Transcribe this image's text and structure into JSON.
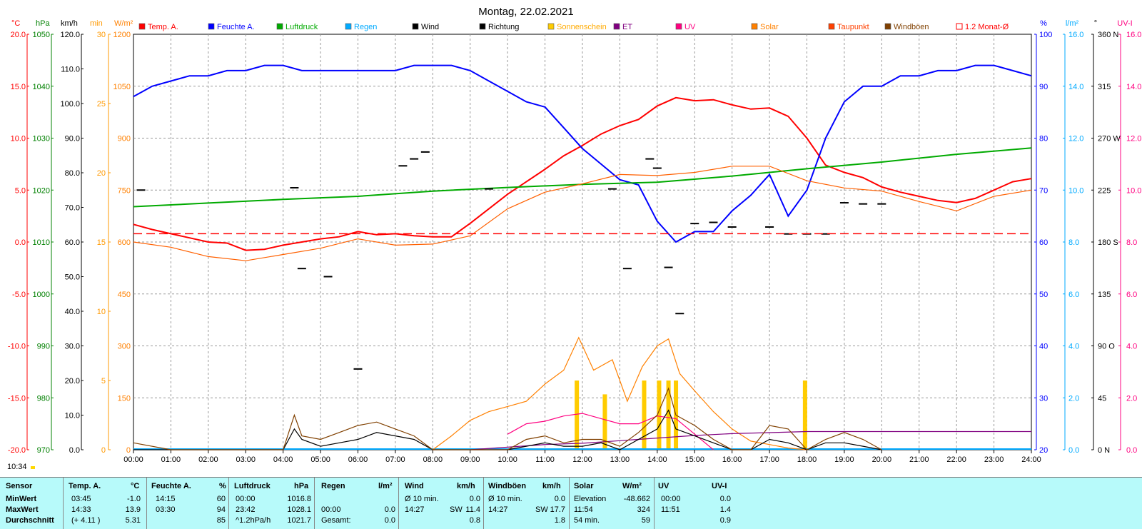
{
  "chart_data": {
    "type": "line",
    "title": "Montag, 22.02.2021",
    "x_ticks": [
      "00:00",
      "01:00",
      "02:00",
      "03:00",
      "04:00",
      "05:00",
      "06:00",
      "07:00",
      "08:00",
      "09:00",
      "10:00",
      "11:00",
      "12:00",
      "13:00",
      "14:00",
      "15:00",
      "16:00",
      "17:00",
      "18:00",
      "19:00",
      "20:00",
      "21:00",
      "22:00",
      "23:00",
      "24:00"
    ],
    "xlim": [
      0,
      24
    ],
    "legend": [
      {
        "label": "Temp. A.",
        "color": "#ff0000",
        "style": "fill"
      },
      {
        "label": "Feuchte A.",
        "color": "#0000ff",
        "style": "fill"
      },
      {
        "label": "Luftdruck",
        "color": "#00aa00",
        "style": "fill"
      },
      {
        "label": "Regen",
        "color": "#00aaff",
        "style": "fill"
      },
      {
        "label": "Wind",
        "color": "#000000",
        "style": "fill"
      },
      {
        "label": "Richtung",
        "color": "#000000",
        "style": "fill"
      },
      {
        "label": "Sonnenschein",
        "color": "#ffcc00",
        "style": "fill"
      },
      {
        "label": "ET",
        "color": "#800080",
        "style": "fill"
      },
      {
        "label": "UV",
        "color": "#ff0080",
        "style": "fill"
      },
      {
        "label": "Solar",
        "color": "#ff8000",
        "style": "fill"
      },
      {
        "label": "Taupunkt",
        "color": "#ff4000",
        "style": "fill"
      },
      {
        "label": "Windböen",
        "color": "#804000",
        "style": "fill"
      },
      {
        "label": "1.2 Monat-Ø",
        "color": "#ff0000",
        "style": "outline"
      }
    ],
    "left_axes": [
      {
        "unit": "°C",
        "color": "#ff0000",
        "ticks": [
          "20.0",
          "15.0",
          "10.0",
          "5.0",
          "0.0",
          "-5.0",
          "-10.0",
          "-15.0",
          "-20.0"
        ]
      },
      {
        "unit": "hPa",
        "color": "#008000",
        "ticks": [
          "1050",
          "1040",
          "1030",
          "1020",
          "1010",
          "1000",
          "990",
          "980",
          "970"
        ]
      },
      {
        "unit": "km/h",
        "color": "#000000",
        "ticks": [
          "120.0",
          "110.0",
          "100.0",
          "90.0",
          "80.0",
          "70.0",
          "60.0",
          "50.0",
          "40.0",
          "30.0",
          "20.0",
          "10.0",
          "0.0"
        ]
      },
      {
        "unit": "min",
        "color": "#ffa500",
        "ticks": [
          "30",
          "25",
          "20",
          "15",
          "10",
          "5",
          "0"
        ]
      },
      {
        "unit": "W/m²",
        "color": "#ff8000",
        "ticks": [
          "1200",
          "1050",
          "900",
          "750",
          "600",
          "450",
          "300",
          "150",
          "0"
        ]
      }
    ],
    "right_axes": [
      {
        "unit": "%",
        "color": "#0000ff",
        "ticks": [
          "100",
          "90",
          "80",
          "70",
          "60",
          "50",
          "40",
          "30",
          "20"
        ]
      },
      {
        "unit": "l/m²",
        "color": "#00aaff",
        "ticks": [
          "16.0",
          "14.0",
          "12.0",
          "10.0",
          "8.0",
          "6.0",
          "4.0",
          "2.0",
          "0.0"
        ]
      },
      {
        "unit": "°",
        "color": "#000000",
        "ticks": [
          "360 N",
          "315",
          "270 W",
          "225",
          "180 S",
          "135",
          "90 O",
          "45",
          "0 N"
        ]
      },
      {
        "unit": "UV-I",
        "color": "#ff0080",
        "ticks": [
          "16.0",
          "14.0",
          "12.0",
          "10.0",
          "8.0",
          "6.0",
          "4.0",
          "2.0",
          "0.0"
        ]
      }
    ],
    "series": [
      {
        "name": "Temp. A.",
        "color": "#ff0000",
        "axis": "°C",
        "x": [
          0,
          0.5,
          1,
          1.5,
          2,
          2.5,
          3,
          3.5,
          4,
          4.5,
          5,
          5.5,
          6,
          6.5,
          7,
          7.5,
          8,
          8.5,
          9,
          9.5,
          10,
          10.5,
          11,
          11.5,
          12,
          12.5,
          13,
          13.5,
          14,
          14.5,
          15,
          15.5,
          16,
          16.5,
          17,
          17.5,
          18,
          18.5,
          19,
          19.5,
          20,
          20.5,
          21,
          21.5,
          22,
          22.5,
          23,
          23.5,
          24
        ],
        "y": [
          1.7,
          1.2,
          0.8,
          0.4,
          0.0,
          -0.1,
          -0.8,
          -0.7,
          -0.3,
          0.0,
          0.3,
          0.5,
          1.0,
          0.7,
          0.8,
          0.6,
          0.5,
          0.5,
          1.8,
          3.2,
          4.6,
          5.8,
          7.0,
          8.3,
          9.3,
          10.4,
          11.2,
          11.8,
          13.1,
          13.9,
          13.6,
          13.7,
          13.2,
          12.8,
          12.9,
          12.1,
          10.0,
          7.4,
          6.7,
          6.2,
          5.3,
          4.8,
          4.4,
          4.0,
          3.8,
          4.2,
          5.0,
          5.8,
          6.1
        ]
      },
      {
        "name": "Feuchte A.",
        "color": "#0000ff",
        "axis": "%",
        "x": [
          0,
          0.5,
          1,
          1.5,
          2,
          2.5,
          3,
          3.5,
          4,
          4.5,
          5,
          5.5,
          6,
          6.5,
          7,
          7.5,
          8,
          8.5,
          9,
          9.5,
          10,
          10.5,
          11,
          11.5,
          12,
          12.5,
          13,
          13.5,
          14,
          14.5,
          15,
          15.5,
          16,
          16.5,
          17,
          17.5,
          18,
          18.5,
          19,
          19.5,
          20,
          20.5,
          21,
          21.5,
          22,
          22.5,
          23,
          23.5,
          24
        ],
        "y": [
          88,
          90,
          91,
          92,
          92,
          93,
          93,
          94,
          94,
          93,
          93,
          93,
          93,
          93,
          93,
          94,
          94,
          94,
          93,
          91,
          89,
          87,
          86,
          82,
          78,
          75,
          72,
          71,
          64,
          60,
          62,
          62,
          66,
          69,
          73,
          65,
          70,
          80,
          87,
          90,
          90,
          92,
          92,
          93,
          93,
          94,
          94,
          93,
          92
        ]
      },
      {
        "name": "Luftdruck",
        "color": "#00aa00",
        "axis": "hPa",
        "x": [
          0,
          2,
          4,
          6,
          8,
          10,
          12,
          14,
          16,
          18,
          20,
          22,
          24
        ],
        "y": [
          1016.8,
          1017.5,
          1018.2,
          1018.8,
          1019.8,
          1020.5,
          1021.1,
          1021.5,
          1022.7,
          1024.1,
          1025.4,
          1026.9,
          1028.1
        ]
      },
      {
        "name": "Taupunkt",
        "color": "#ff6000",
        "axis": "°C",
        "x": [
          0,
          1,
          2,
          3,
          4,
          5,
          6,
          7,
          8,
          9,
          10,
          11,
          12,
          13,
          14,
          15,
          16,
          17,
          18,
          19,
          20,
          21,
          22,
          23,
          24
        ],
        "y": [
          0.0,
          -0.5,
          -1.4,
          -1.8,
          -1.2,
          -0.6,
          0.3,
          -0.3,
          -0.2,
          0.6,
          3.2,
          4.8,
          5.6,
          6.5,
          6.4,
          6.7,
          7.3,
          7.3,
          5.9,
          5.2,
          4.9,
          3.9,
          3.0,
          4.4,
          5.0
        ]
      },
      {
        "name": "Solar",
        "color": "#ff8000",
        "axis": "W/m²",
        "x": [
          8,
          8.5,
          9,
          9.5,
          10,
          10.5,
          11,
          11.5,
          11.9,
          12.3,
          12.8,
          13.2,
          13.6,
          14,
          14.3,
          14.6,
          15,
          15.5,
          16,
          16.5,
          17,
          17.5,
          18
        ],
        "y": [
          0,
          40,
          85,
          110,
          125,
          140,
          190,
          230,
          324,
          230,
          260,
          140,
          240,
          300,
          320,
          220,
          170,
          110,
          60,
          25,
          15,
          5,
          0
        ]
      },
      {
        "name": "UV",
        "color": "#ff0080",
        "axis": "UV-I",
        "x": [
          10,
          10.5,
          11,
          11.5,
          12,
          12.5,
          13,
          13.5,
          14,
          14.5,
          15,
          15.5
        ],
        "y": [
          0.6,
          1.0,
          1.1,
          1.3,
          1.4,
          1.2,
          1.0,
          1.0,
          1.3,
          1.2,
          0.6,
          0.0
        ]
      },
      {
        "name": "ET",
        "color": "#800080",
        "axis": "l/m²",
        "x": [
          9,
          10,
          11,
          12,
          13,
          14,
          15,
          16,
          17,
          18,
          24
        ],
        "y": [
          0,
          0.1,
          0.2,
          0.25,
          0.35,
          0.45,
          0.55,
          0.62,
          0.66,
          0.7,
          0.7
        ]
      },
      {
        "name": "Wind",
        "color": "#000000",
        "axis": "km/h",
        "x": [
          0,
          1,
          2,
          3,
          4,
          4.3,
          4.5,
          5,
          5.5,
          6,
          6.5,
          7,
          7.5,
          8,
          9,
          10,
          10.5,
          11,
          11.5,
          12,
          12.5,
          13,
          13.5,
          14,
          14.3,
          14.5,
          15,
          15.5,
          16,
          16.5,
          17,
          17.5,
          18,
          18.5,
          19,
          19.5,
          20
        ],
        "y": [
          0,
          0,
          0,
          0,
          0,
          6,
          3,
          1,
          2,
          3,
          5,
          4,
          3,
          0,
          0,
          0,
          1,
          2,
          1,
          1,
          2,
          0,
          3,
          6,
          11.4,
          6,
          4,
          2,
          0,
          0,
          3,
          2,
          0,
          2,
          2,
          1,
          0
        ]
      },
      {
        "name": "Windböen",
        "color": "#804000",
        "axis": "km/h",
        "x": [
          0,
          1,
          2,
          3,
          4,
          4.3,
          4.5,
          5,
          5.5,
          6,
          6.5,
          7,
          7.5,
          8,
          9,
          10,
          10.5,
          11,
          11.5,
          12,
          12.5,
          13,
          13.5,
          14,
          14.3,
          14.5,
          15,
          15.5,
          16,
          16.5,
          17,
          17.5,
          18,
          18.5,
          19,
          19.5,
          20
        ],
        "y": [
          2,
          0,
          0,
          0,
          0,
          10,
          4,
          3,
          5,
          7,
          8,
          6,
          4,
          0,
          0,
          0,
          3,
          4,
          2,
          3,
          3,
          1,
          5,
          10,
          17.7,
          10,
          7,
          3,
          0,
          0,
          7,
          6,
          0,
          3,
          5,
          3,
          0
        ]
      },
      {
        "name": "Richtung",
        "color": "#000000",
        "axis": "°",
        "x": [
          0.2,
          4.3,
          4.5,
          5.2,
          6,
          7.2,
          7.5,
          7.8,
          9.5,
          12.8,
          13.2,
          13.8,
          14.0,
          14.3,
          14.6,
          15,
          15.5,
          16,
          17,
          17.5,
          18,
          18.5,
          19,
          19.5,
          20
        ],
        "y": [
          225,
          227,
          157,
          150,
          70,
          246,
          252,
          258,
          226,
          226,
          157,
          252,
          244,
          158,
          118,
          196,
          197,
          193,
          193,
          187,
          187,
          187,
          214,
          213,
          213
        ]
      },
      {
        "name": "1.2 Monat-Ø",
        "color": "#ff0000",
        "axis": "°C",
        "dashed": true,
        "x": [
          0,
          24
        ],
        "y": [
          0.8,
          0.8
        ]
      }
    ],
    "sunshine_bars": {
      "x": [
        11.85,
        12.6,
        13.65,
        14.05,
        14.3,
        14.5,
        17.95
      ],
      "y": [
        5,
        4,
        5,
        5,
        5,
        5,
        5
      ]
    },
    "grid": true
  },
  "footer": {
    "time": "10:34",
    "headers": {
      "sensor": "Sensor",
      "temp": "Temp. A.",
      "temp_unit": "°C",
      "hum": "Feuchte A.",
      "hum_unit": "%",
      "press": "Luftdruck",
      "press_unit": "hPa",
      "rain": "Regen",
      "rain_unit": "l/m²",
      "wind": "Wind",
      "wind_unit": "km/h",
      "gust": "Windböen",
      "gust_unit": "km/h",
      "solar": "Solar",
      "solar_unit": "W/m²",
      "uv": "UV",
      "uv_unit": "UV-I"
    },
    "rows": [
      {
        "label": "MinWert",
        "temp_t": "03:45",
        "temp_v": "-1.0",
        "hum_t": "14:15",
        "hum_v": "60",
        "press_t": "00:00",
        "press_v": "1016.8",
        "rain_t": "",
        "rain_v": "",
        "wind_t": "Ø 10 min.",
        "wind_d": "",
        "wind_v": "0.0",
        "gust_t": "Ø 10 min.",
        "gust_d": "",
        "gust_v": "0.0",
        "solar_t": "Elevation",
        "solar_v": "-48.662",
        "uv_t": "00:00",
        "uv_v": "0.0"
      },
      {
        "label": "MaxWert",
        "temp_t": "14:33",
        "temp_v": "13.9",
        "hum_t": "03:30",
        "hum_v": "94",
        "press_t": "23:42",
        "press_v": "1028.1",
        "rain_t": "00:00",
        "rain_v": "0.0",
        "wind_t": "14:27",
        "wind_d": "SW",
        "wind_v": "11.4",
        "gust_t": "14:27",
        "gust_d": "SW",
        "gust_v": "17.7",
        "solar_t": "11:54",
        "solar_v": "324",
        "uv_t": "11:51",
        "uv_v": "1.4"
      },
      {
        "label": "Durchschnitt",
        "temp_t": "(+ 4.11 )",
        "temp_v": "5.31",
        "hum_t": "",
        "hum_v": "85",
        "press_t": "^1.2hPa/h",
        "press_v": "1021.7",
        "rain_t": "Gesamt:",
        "rain_v": "0.0",
        "wind_t": "",
        "wind_d": "",
        "wind_v": "0.8",
        "gust_t": "",
        "gust_d": "",
        "gust_v": "1.8",
        "solar_t": "54 min.",
        "solar_v": "59",
        "uv_t": "",
        "uv_v": "0.9"
      }
    ]
  }
}
